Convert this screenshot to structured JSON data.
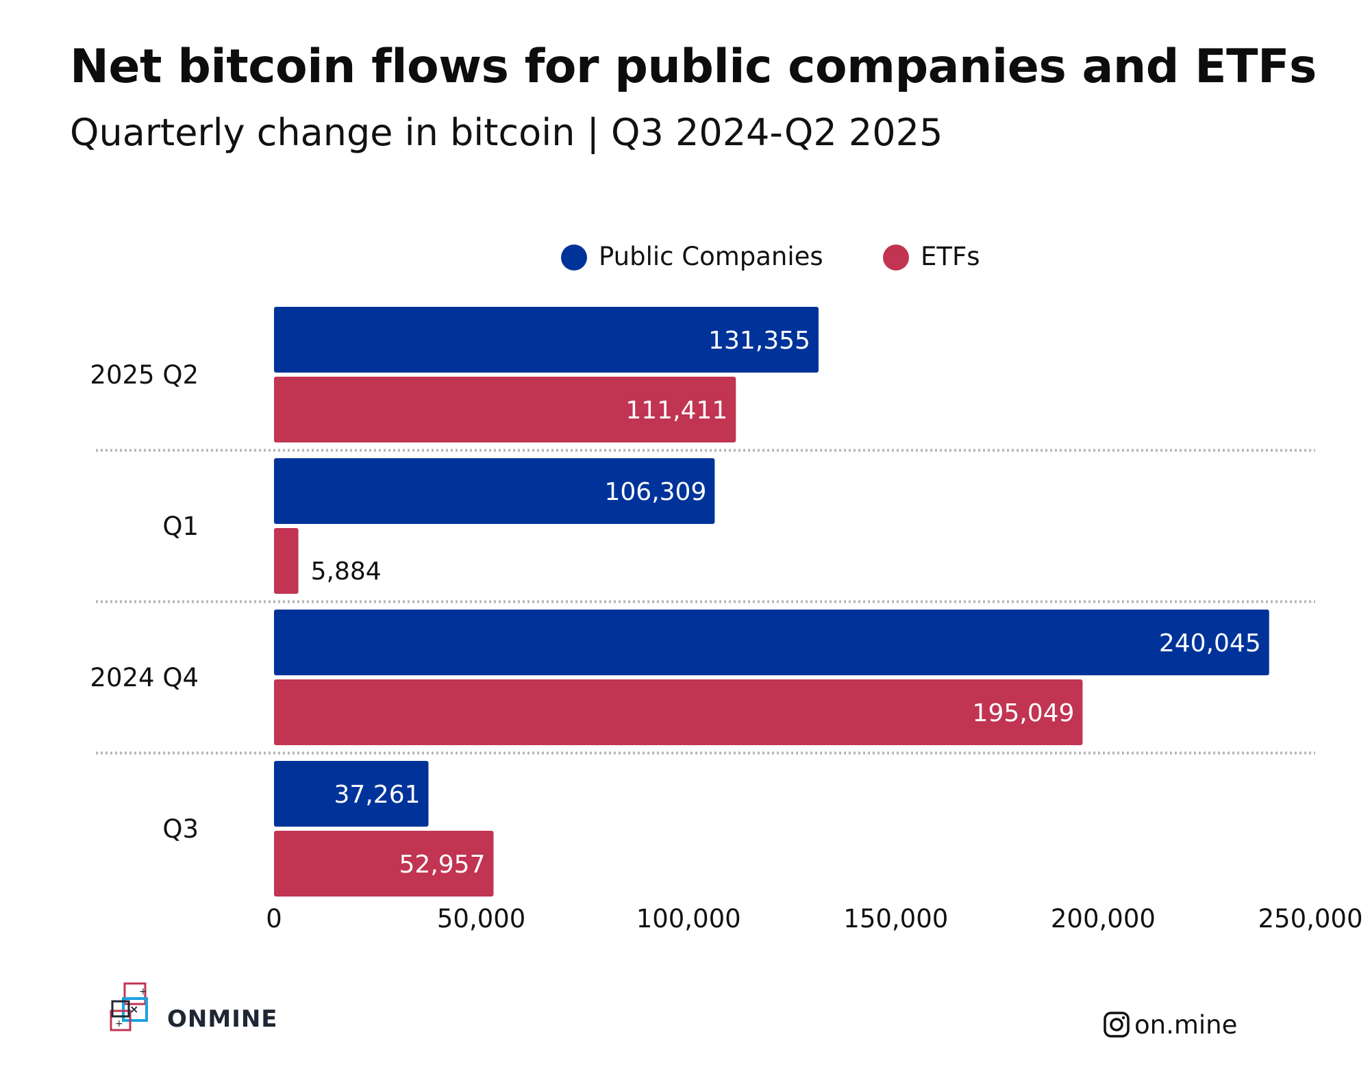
{
  "title": "Net bitcoin flows for public companies and ETFs",
  "subtitle": "Quarterly change in bitcoin | Q3 2024-Q2 2025",
  "chart_data": {
    "type": "bar",
    "orientation": "horizontal",
    "categories": [
      "2025 Q2",
      "Q1",
      "2024 Q4",
      "Q3"
    ],
    "series": [
      {
        "name": "Public Companies",
        "color": "#00339a",
        "values": [
          131355,
          106309,
          240045,
          37261
        ]
      },
      {
        "name": "ETFs",
        "color": "#c13452",
        "values": [
          111411,
          5884,
          195049,
          52957
        ]
      }
    ],
    "value_labels": {
      "Public Companies": [
        "131,355",
        "106,309",
        "240,045",
        "37,261"
      ],
      "ETFs": [
        "111,411",
        "5,884",
        "195,049",
        "52,957"
      ]
    },
    "xlim": [
      0,
      250000
    ],
    "x_ticks": [
      0,
      50000,
      100000,
      150000,
      200000,
      250000
    ],
    "x_tick_labels": [
      "0",
      "50,000",
      "100,000",
      "150,000",
      "200,000",
      "250,000"
    ],
    "legend_position": "top-center",
    "grid": false,
    "category_separators": "dotted"
  },
  "footer": {
    "brand_logo_text": "ONMINE",
    "social_icon": "instagram-icon",
    "social_handle": "on.mine"
  }
}
